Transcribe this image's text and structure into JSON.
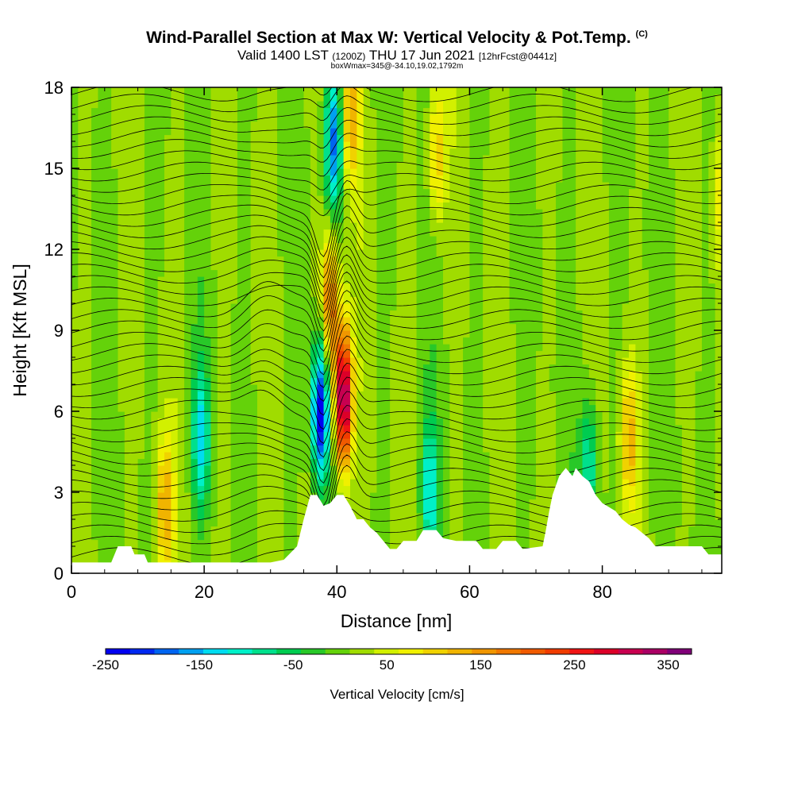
{
  "header": {
    "title": "Wind-Parallel Section at Max W: Vertical Velocity & Pot.Temp.",
    "copyright": "(C)",
    "valid_main": "Valid 1400 LST",
    "valid_utc": "(1200Z)",
    "valid_date": "THU 17 Jun 2021",
    "forecast": "[12hrFcst@0441z]",
    "box_info": "boxWmax=345@-34.10,19.02,1792m"
  },
  "chart_data": {
    "type": "heatmap",
    "title": "Wind-Parallel Section at Max W: Vertical Velocity & Pot.Temp.",
    "xlabel": "Distance [nm]",
    "ylabel": "Height [Kft MSL]",
    "xlim": [
      0,
      98
    ],
    "ylim": [
      0,
      18
    ],
    "x_ticks": [
      0,
      20,
      40,
      60,
      80
    ],
    "x_tick_labels": [
      "0",
      "20",
      "40",
      "60",
      "80"
    ],
    "y_ticks": [
      0,
      3,
      6,
      9,
      12,
      15,
      18
    ],
    "y_tick_labels": [
      "0",
      "3",
      "6",
      "9",
      "12",
      "15",
      "18"
    ],
    "colorbar": {
      "label": "Vertical Velocity [cm/s]",
      "min": -250,
      "max": 375,
      "step": 25,
      "tick_values": [
        -250,
        -150,
        -50,
        50,
        150,
        250,
        350
      ],
      "tick_labels": [
        "-250",
        "-150",
        "-50",
        "50",
        "150",
        "250",
        "350"
      ],
      "colors": [
        "#0000f0",
        "#0028f0",
        "#0064f0",
        "#00a0f0",
        "#00dcf0",
        "#00f0c8",
        "#00e08c",
        "#00cc50",
        "#28c828",
        "#64d20a",
        "#a0dc00",
        "#d2f000",
        "#f0f000",
        "#f0d200",
        "#f0b400",
        "#f09600",
        "#f07800",
        "#f05a00",
        "#f03c00",
        "#f01414",
        "#dc0028",
        "#c80050",
        "#aa0064",
        "#800078"
      ]
    },
    "updrafts": [
      {
        "x": 41,
        "z": 6.5,
        "w": 345
      },
      {
        "x": 39,
        "z": 10,
        "w": 180
      },
      {
        "x": 42,
        "z": 17,
        "w": 120
      },
      {
        "x": 14,
        "z": 2.5,
        "w": 120
      },
      {
        "x": 84,
        "z": 5,
        "w": 110
      },
      {
        "x": 55,
        "z": 15.5,
        "w": 100
      },
      {
        "x": 98,
        "z": 14,
        "w": 70
      }
    ],
    "downdrafts": [
      {
        "x": 37.5,
        "z": 6,
        "w": -250
      },
      {
        "x": 39.5,
        "z": 16,
        "w": -180
      },
      {
        "x": 19.5,
        "z": 5,
        "w": -130
      },
      {
        "x": 54,
        "z": 3,
        "w": -120
      },
      {
        "x": 78,
        "z": 4,
        "w": -110
      }
    ],
    "terrain": [
      {
        "x": 0,
        "z": 0.4
      },
      {
        "x": 6,
        "z": 0.4
      },
      {
        "x": 6.5,
        "z": 0.7
      },
      {
        "x": 7,
        "z": 1.0
      },
      {
        "x": 9,
        "z": 1.0
      },
      {
        "x": 9.5,
        "z": 0.7
      },
      {
        "x": 11,
        "z": 0.7
      },
      {
        "x": 11.5,
        "z": 0.4
      },
      {
        "x": 30,
        "z": 0.4
      },
      {
        "x": 32,
        "z": 0.5
      },
      {
        "x": 34,
        "z": 1.0
      },
      {
        "x": 35,
        "z": 2.0
      },
      {
        "x": 36,
        "z": 2.9
      },
      {
        "x": 37,
        "z": 2.9
      },
      {
        "x": 38,
        "z": 2.5
      },
      {
        "x": 39,
        "z": 2.6
      },
      {
        "x": 40,
        "z": 2.9
      },
      {
        "x": 41,
        "z": 2.9
      },
      {
        "x": 42,
        "z": 2.5
      },
      {
        "x": 43,
        "z": 2.0
      },
      {
        "x": 44,
        "z": 2.0
      },
      {
        "x": 45,
        "z": 1.7
      },
      {
        "x": 46,
        "z": 1.5
      },
      {
        "x": 47,
        "z": 1.2
      },
      {
        "x": 48,
        "z": 0.9
      },
      {
        "x": 49,
        "z": 0.9
      },
      {
        "x": 50,
        "z": 1.2
      },
      {
        "x": 52,
        "z": 1.2
      },
      {
        "x": 53,
        "z": 1.6
      },
      {
        "x": 55,
        "z": 1.6
      },
      {
        "x": 56,
        "z": 1.3
      },
      {
        "x": 58,
        "z": 1.2
      },
      {
        "x": 61,
        "z": 1.2
      },
      {
        "x": 62,
        "z": 0.9
      },
      {
        "x": 64,
        "z": 0.9
      },
      {
        "x": 65,
        "z": 1.2
      },
      {
        "x": 67,
        "z": 1.2
      },
      {
        "x": 68,
        "z": 0.9
      },
      {
        "x": 71,
        "z": 1.0
      },
      {
        "x": 71.5,
        "z": 1.6
      },
      {
        "x": 72,
        "z": 2.3
      },
      {
        "x": 72.5,
        "z": 2.9
      },
      {
        "x": 73.5,
        "z": 3.6
      },
      {
        "x": 74.5,
        "z": 3.9
      },
      {
        "x": 75.5,
        "z": 3.6
      },
      {
        "x": 76,
        "z": 3.9
      },
      {
        "x": 77,
        "z": 3.6
      },
      {
        "x": 78,
        "z": 3.4
      },
      {
        "x": 79,
        "z": 2.9
      },
      {
        "x": 80,
        "z": 2.6
      },
      {
        "x": 82,
        "z": 2.3
      },
      {
        "x": 83,
        "z": 2.0
      },
      {
        "x": 84,
        "z": 1.8
      },
      {
        "x": 85,
        "z": 1.7
      },
      {
        "x": 86,
        "z": 1.5
      },
      {
        "x": 87,
        "z": 1.3
      },
      {
        "x": 88,
        "z": 1.0
      },
      {
        "x": 92,
        "z": 1.0
      },
      {
        "x": 95,
        "z": 1.0
      },
      {
        "x": 96,
        "z": 0.7
      },
      {
        "x": 98,
        "z": 0.7
      }
    ]
  }
}
